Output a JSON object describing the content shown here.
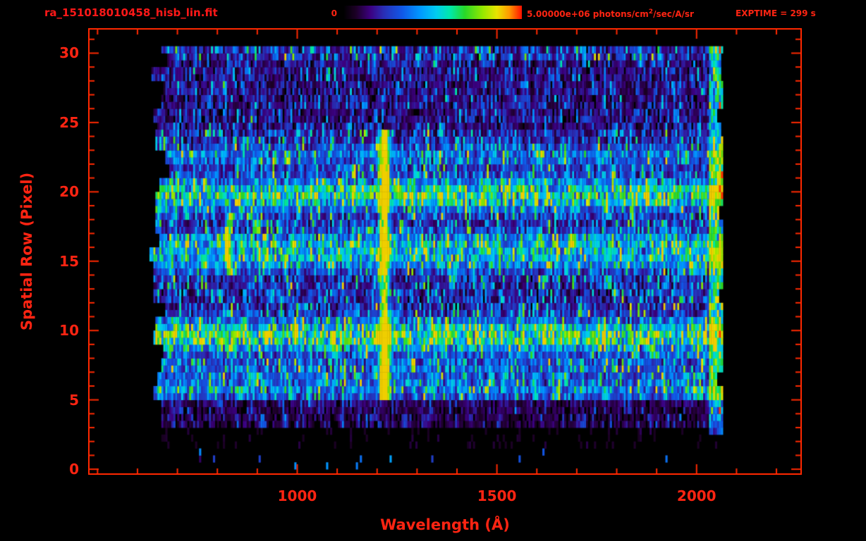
{
  "header": {
    "title": "ra_151018010458_hisb_lin.fit",
    "colorbar_min": "0",
    "colorbar_max_value": "5.00000e+06",
    "colorbar_unit_prefix": " photons/cm",
    "colorbar_unit_sup": "2",
    "colorbar_unit_suffix": "/sec/A/sr",
    "exptime": "EXPTIME = 299 s"
  },
  "colors": {
    "background": "#000000",
    "axis": "#ff2800",
    "text": "#ff2412",
    "title": "#ff1818"
  },
  "chart_data": {
    "type": "heatmap",
    "title": "ra_151018010458_hisb_lin.fit",
    "xlabel": "Wavelength (Å)",
    "ylabel": "Spatial Row (Pixel)",
    "x_axis_range": [
      480,
      2260
    ],
    "y_axis_range": [
      -0.3,
      31.7
    ],
    "x_ticks": [
      1000,
      1500,
      2000
    ],
    "x_minor_tick_step": 100,
    "y_ticks": [
      0,
      5,
      10,
      15,
      20,
      25,
      30
    ],
    "y_minor_tick_step": 1,
    "colorbar_min": 0,
    "colorbar_max": 5000000,
    "colorbar_units": "photons/cm^2/sec/A/sr",
    "exposure_time_s": 299,
    "data_wavelength_extent": [
      625,
      2066
    ],
    "data_row_extent": [
      0,
      30.5
    ],
    "noise_seed": 1337,
    "colormap_stops": [
      [
        0.0,
        "#000000"
      ],
      [
        0.07,
        "#1c0026"
      ],
      [
        0.15,
        "#3c0080"
      ],
      [
        0.23,
        "#2830b8"
      ],
      [
        0.33,
        "#1058e8"
      ],
      [
        0.43,
        "#0098ff"
      ],
      [
        0.52,
        "#00ccf0"
      ],
      [
        0.6,
        "#00e8a8"
      ],
      [
        0.68,
        "#28d828"
      ],
      [
        0.78,
        "#94e800"
      ],
      [
        0.86,
        "#e8e400"
      ],
      [
        0.93,
        "#ff9800"
      ],
      [
        1.0,
        "#ff1000"
      ]
    ],
    "features": {
      "row_zones": [
        [
          0,
          1.3,
          0.02
        ],
        [
          1.3,
          3,
          0.05
        ],
        [
          3,
          4.6,
          0.2
        ],
        [
          4.6,
          24.2,
          0.42
        ],
        [
          24.2,
          29.4,
          0.3
        ],
        [
          29.4,
          30.6,
          0.44
        ]
      ],
      "bright_rows": [
        {
          "row": 5.6,
          "amp": 0.22,
          "sigma": 0.5
        },
        {
          "row": 7.0,
          "amp": 0.16,
          "sigma": 0.5
        },
        {
          "row": 9.35,
          "amp": 0.55,
          "sigma": 0.75
        },
        {
          "row": 14.8,
          "amp": 0.28,
          "sigma": 0.5
        },
        {
          "row": 16.0,
          "amp": 0.32,
          "sigma": 0.6
        },
        {
          "row": 19.55,
          "amp": 0.48,
          "sigma": 0.75
        },
        {
          "row": 22.4,
          "amp": 0.2,
          "sigma": 0.5
        }
      ],
      "emission_line": {
        "wavelength": 1216,
        "sigma": 8,
        "amp": 0.95,
        "row_min": 4.8,
        "row_max": 24.2
      },
      "left_arc": {
        "wl_center": 822,
        "rows": [
          13.8,
          18.4
        ],
        "amp": 0.6
      },
      "right_band": {
        "wl_min": 2028,
        "wl_max": 2062,
        "amp": 0.42
      }
    }
  }
}
